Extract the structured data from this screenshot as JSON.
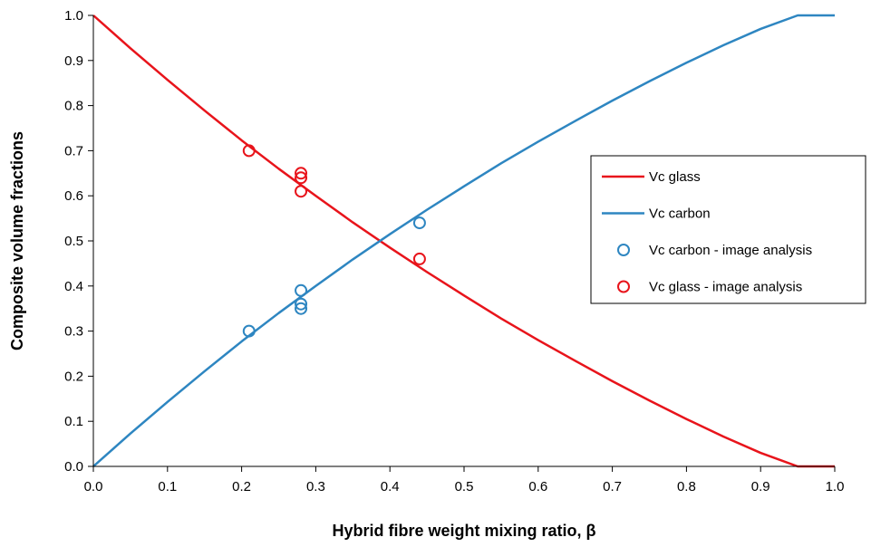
{
  "chart_data": {
    "type": "line",
    "xlabel": "Hybrid fibre weight mixing ratio, β",
    "ylabel": "Composite volume fractions",
    "xlim": [
      0,
      1
    ],
    "ylim": [
      0,
      1
    ],
    "x_ticks": [
      0.0,
      0.1,
      0.2,
      0.3,
      0.4,
      0.5,
      0.6,
      0.7,
      0.8,
      0.9,
      1.0
    ],
    "y_ticks": [
      0.0,
      0.1,
      0.2,
      0.3,
      0.4,
      0.5,
      0.6,
      0.7,
      0.8,
      0.9,
      1.0
    ],
    "x_tick_labels": [
      "0.0",
      "0.1",
      "0.2",
      "0.3",
      "0.4",
      "0.5",
      "0.6",
      "0.7",
      "0.8",
      "0.9",
      "1.0"
    ],
    "y_tick_labels": [
      "0.0",
      "0.1",
      "0.2",
      "0.3",
      "0.4",
      "0.5",
      "0.6",
      "0.7",
      "0.8",
      "0.9",
      "1.0"
    ],
    "grid": false,
    "legend_position": "right",
    "series": [
      {
        "name": "Vc glass",
        "kind": "line",
        "color": "#e8141b",
        "x": [
          0.0,
          0.05,
          0.1,
          0.15,
          0.2,
          0.25,
          0.3,
          0.35,
          0.4,
          0.45,
          0.5,
          0.55,
          0.6,
          0.65,
          0.7,
          0.75,
          0.8,
          0.85,
          0.9,
          0.95,
          1.0
        ],
        "y": [
          1.0,
          0.927,
          0.857,
          0.789,
          0.723,
          0.66,
          0.6,
          0.541,
          0.485,
          0.431,
          0.379,
          0.328,
          0.28,
          0.234,
          0.189,
          0.146,
          0.105,
          0.066,
          0.03,
          0.0,
          0.0
        ]
      },
      {
        "name": "Vc carbon",
        "kind": "line",
        "color": "#2e86c1",
        "x": [
          0.0,
          0.05,
          0.1,
          0.15,
          0.2,
          0.25,
          0.3,
          0.35,
          0.4,
          0.45,
          0.5,
          0.55,
          0.6,
          0.65,
          0.7,
          0.75,
          0.8,
          0.85,
          0.9,
          0.95,
          1.0
        ],
        "y": [
          0.0,
          0.073,
          0.143,
          0.211,
          0.277,
          0.34,
          0.4,
          0.459,
          0.515,
          0.569,
          0.621,
          0.672,
          0.72,
          0.766,
          0.811,
          0.854,
          0.895,
          0.934,
          0.97,
          1.0,
          1.0
        ]
      },
      {
        "name": "Vc carbon - image analysis",
        "kind": "scatter",
        "color": "#2e86c1",
        "x": [
          0.21,
          0.28,
          0.28,
          0.28,
          0.44
        ],
        "y": [
          0.3,
          0.39,
          0.36,
          0.35,
          0.54
        ]
      },
      {
        "name": "Vc glass - image analysis",
        "kind": "scatter",
        "color": "#e8141b",
        "x": [
          0.21,
          0.28,
          0.28,
          0.28,
          0.44
        ],
        "y": [
          0.7,
          0.65,
          0.64,
          0.61,
          0.46
        ]
      }
    ]
  }
}
